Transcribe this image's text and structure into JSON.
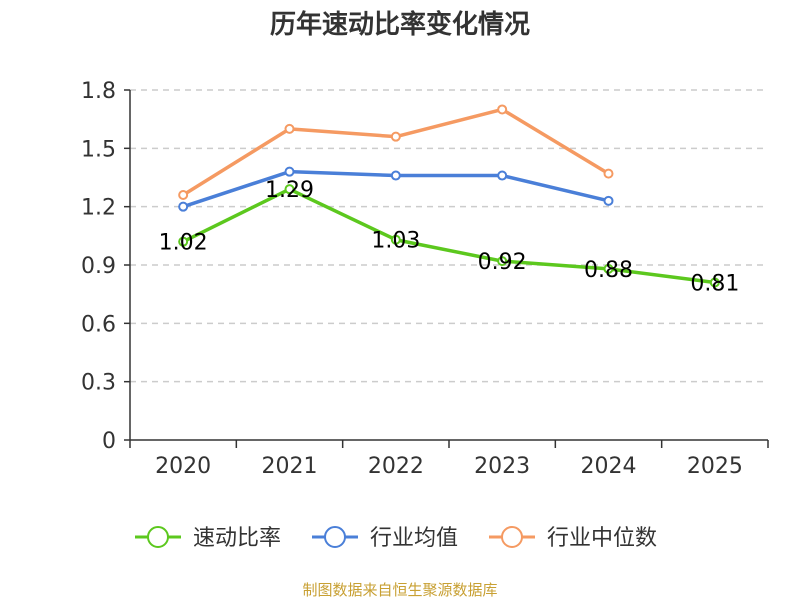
{
  "chart_data": {
    "type": "line",
    "title": "历年速动比率变化情况",
    "categories": [
      "2020",
      "2021",
      "2022",
      "2023",
      "2024",
      "2025"
    ],
    "ylim": [
      0,
      1.8
    ],
    "yticks": [
      "0",
      "0.3",
      "0.6",
      "0.9",
      "1.2",
      "1.5",
      "1.8"
    ],
    "grid": true,
    "legend_position": "bottom",
    "series": [
      {
        "name": "速动比率",
        "color": "#5cc81e",
        "values": [
          1.02,
          1.29,
          1.03,
          0.92,
          0.88,
          0.81
        ],
        "labels": [
          "1.02",
          "1.29",
          "1.03",
          "0.92",
          "0.88",
          "0.81"
        ]
      },
      {
        "name": "行业均值",
        "color": "#4a7fd8",
        "values": [
          1.2,
          1.38,
          1.36,
          1.36,
          1.23,
          null
        ]
      },
      {
        "name": "行业中位数",
        "color": "#f59a62",
        "values": [
          1.26,
          1.6,
          1.56,
          1.7,
          1.37,
          null
        ]
      }
    ]
  },
  "source": "制图数据来自恒生聚源数据库"
}
